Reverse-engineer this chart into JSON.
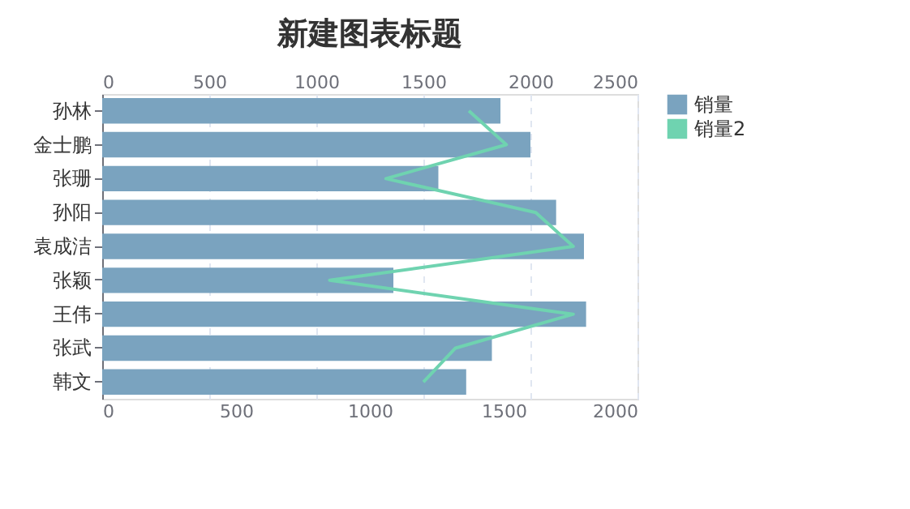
{
  "chart_data": {
    "type": "bar",
    "orientation": "horizontal",
    "title": "新建图表标题",
    "categories": [
      "孙林",
      "金士鹏",
      "张珊",
      "孙阳",
      "袁成洁",
      "张颖",
      "王伟",
      "张武",
      "韩文"
    ],
    "series": [
      {
        "name": "销量",
        "axis": "x2",
        "color": "#7aa3bf",
        "values": [
          1860,
          2000,
          1570,
          2120,
          2250,
          1360,
          2260,
          1820,
          1700
        ]
      },
      {
        "name": "销量2",
        "type": "line",
        "color": "#6fd3b0",
        "values": [
          1370,
          1510,
          1060,
          1620,
          1760,
          850,
          1760,
          1320,
          1200
        ]
      }
    ],
    "xlim": [
      0,
      2000
    ],
    "xticks": [
      0,
      500,
      1000,
      1500,
      2000
    ],
    "x2lim": [
      0,
      2500
    ],
    "x2ticks": [
      0,
      500,
      1000,
      1500,
      2000,
      2500
    ],
    "grid": "x",
    "legend": "right",
    "line_style": "solid",
    "marker": "none"
  }
}
